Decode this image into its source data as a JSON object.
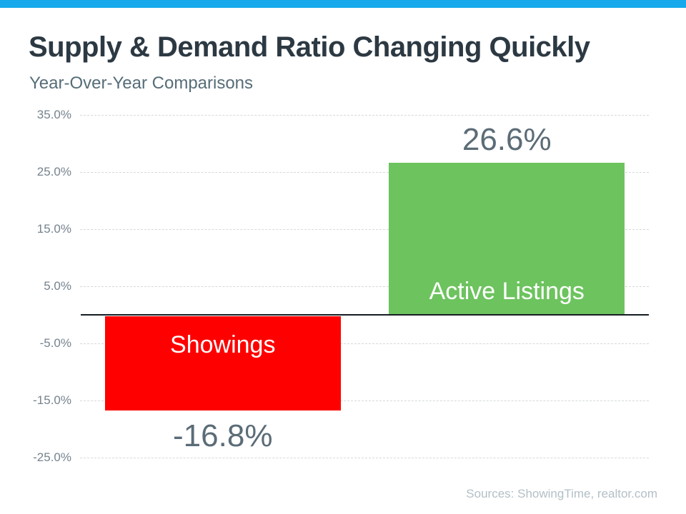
{
  "page": {
    "title": "Supply & Demand Ratio Changing Quickly",
    "subtitle": "Year-Over-Year Comparisons",
    "source_note": "Sources: ShowingTime, realtor.com",
    "accent_bar_color": "#17a9eb"
  },
  "chart_data": {
    "type": "bar",
    "title": "Supply & Demand Ratio Changing Quickly",
    "subtitle": "Year-Over-Year Comparisons",
    "categories": [
      "Showings",
      "Active Listings"
    ],
    "values": [
      -16.8,
      26.6
    ],
    "value_labels": [
      "-16.8%",
      "26.6%"
    ],
    "bar_colors": [
      "#ff0000",
      "#6dc35e"
    ],
    "category_label_color": "#ffffff",
    "value_label_color": "#5b6c77",
    "y_ticks": [
      35,
      25,
      15,
      5,
      -5,
      -15,
      -25
    ],
    "y_tick_labels": [
      "35.0%",
      "25.0%",
      "15.0%",
      "5.0%",
      "-5.0%",
      "-15.0%",
      "-25.0%"
    ],
    "ylim": [
      -30,
      35
    ],
    "grid": "horizontal-dashed",
    "legend": "none",
    "source": "Sources: ShowingTime, realtor.com"
  }
}
